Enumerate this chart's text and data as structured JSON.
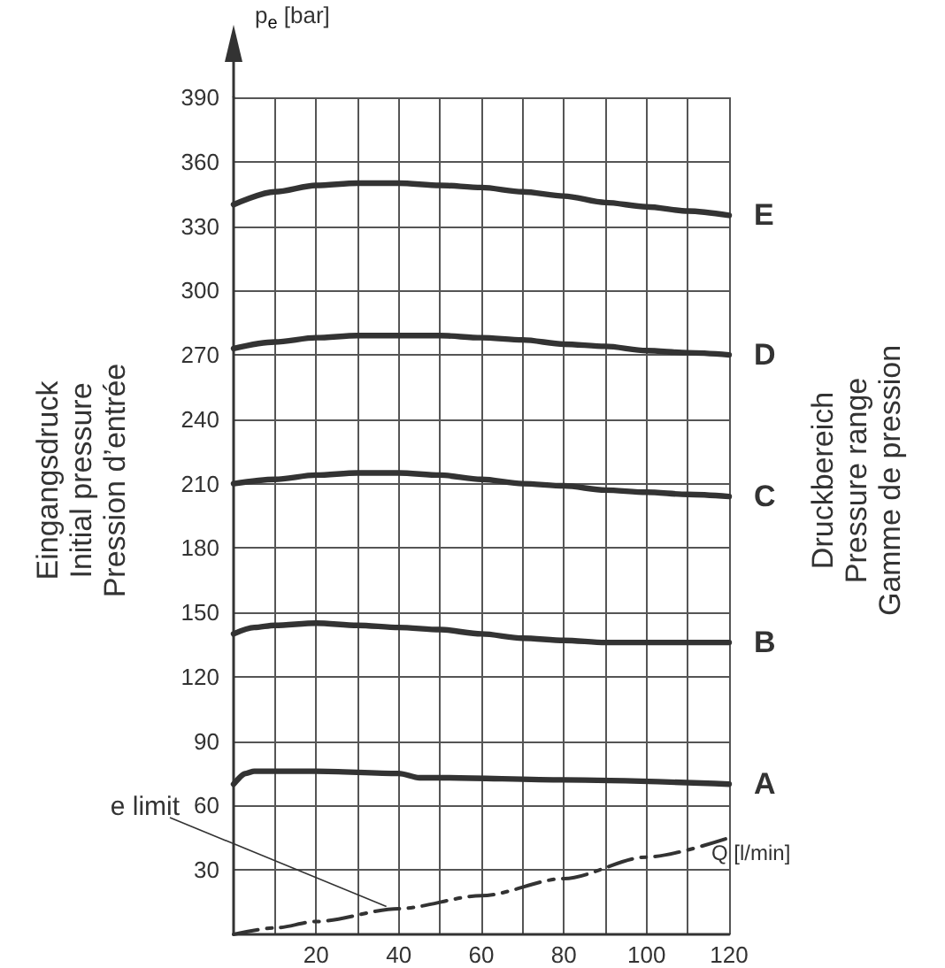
{
  "chart_data": {
    "type": "line",
    "ylabel": "p$_{e}$ [bar]",
    "xlabel": "Q [l/min]",
    "annotations": [
      "Eingangsdruck\nInitial pressure\nPression d’entrée",
      "Druckbereich\nPressure range\nGamme de pression",
      {
        "text": "e limit",
        "x": 37,
        "y": 13
      }
    ],
    "series": [
      {
        "name": "E",
        "color": "#333333",
        "x": [
          0,
          10,
          20,
          30,
          40,
          50,
          60,
          70,
          80,
          90,
          100,
          110,
          120
        ],
        "values": [
          340,
          346,
          349,
          350,
          350,
          349,
          348,
          346,
          344,
          341,
          339,
          337,
          335
        ]
      },
      {
        "name": "D",
        "color": "#333333",
        "x": [
          0,
          10,
          20,
          30,
          40,
          50,
          60,
          70,
          80,
          90,
          100,
          110,
          120
        ],
        "values": [
          273,
          276,
          278,
          279,
          279,
          279,
          278,
          277,
          275,
          274,
          272,
          271,
          270
        ]
      },
      {
        "name": "C",
        "color": "#333333",
        "x": [
          0,
          10,
          20,
          30,
          40,
          50,
          60,
          70,
          80,
          90,
          100,
          110,
          120
        ],
        "values": [
          210,
          212,
          214,
          215,
          215,
          214,
          212,
          210,
          209,
          207,
          206,
          205,
          204
        ]
      },
      {
        "name": "B",
        "color": "#333333",
        "x": [
          0,
          5,
          10,
          20,
          30,
          40,
          50,
          60,
          70,
          80,
          90,
          100,
          120
        ],
        "values": [
          140,
          143,
          144,
          145,
          144,
          143,
          142,
          140,
          138,
          137,
          136,
          136,
          136
        ]
      },
      {
        "name": "A",
        "color": "#333333",
        "x": [
          0,
          3,
          5,
          20,
          40,
          45,
          50,
          80,
          120
        ],
        "values": [
          70,
          75,
          76,
          76,
          75,
          73,
          73,
          72,
          70
        ]
      },
      {
        "color": "#333333",
        "line_style": "dashed",
        "x": [
          0,
          10,
          20,
          40,
          60,
          80,
          100,
          120
        ],
        "values": [
          0,
          3,
          6,
          12,
          18,
          26,
          36,
          45
        ]
      }
    ],
    "xlim": [
      0,
      120
    ],
    "xticks": [
      {
        "value": 10,
        "label": null
      },
      20,
      {
        "value": 30,
        "label": null
      },
      40,
      {
        "value": 50,
        "label": null
      },
      60,
      {
        "value": 70,
        "label": null
      },
      80,
      {
        "value": 90,
        "label": null
      },
      100,
      {
        "value": 110,
        "label": null
      },
      120
    ],
    "ylim": [
      0,
      390
    ],
    "yticks": [
      30,
      60,
      90,
      120,
      150,
      180,
      210,
      240,
      270,
      300,
      330,
      360,
      390
    ],
    "grid": true,
    "legend": false,
    "marker": "none",
    "line_style": "solid"
  }
}
